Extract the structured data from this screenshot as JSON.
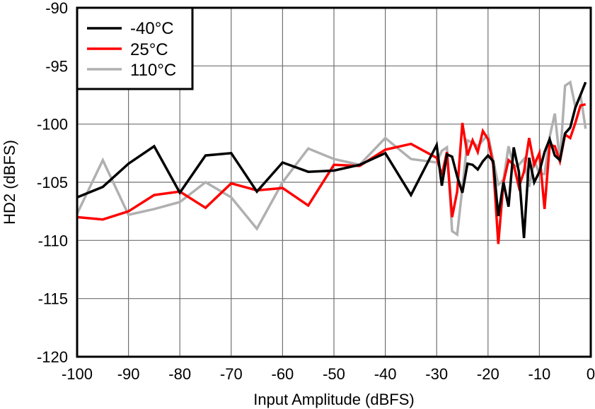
{
  "chart_data": {
    "type": "line",
    "title": "",
    "xlabel": "Input Amplitude (dBFS)",
    "ylabel": "HD2 (dBFS)",
    "xlim": [
      -100,
      0
    ],
    "ylim": [
      -120,
      -90
    ],
    "xticks": [
      "-100",
      "-90",
      "-80",
      "-70",
      "-60",
      "-50",
      "-40",
      "-30",
      "-20",
      "-10",
      "0"
    ],
    "yticks": [
      "-90",
      "-95",
      "-100",
      "-105",
      "-110",
      "-115",
      "-120"
    ],
    "grid": true,
    "legend_position": "top-left",
    "series": [
      {
        "name": "-40°C",
        "color": "#000000",
        "x": [
          -100,
          -95,
          -90,
          -85,
          -80,
          -75,
          -70,
          -65,
          -60,
          -55,
          -50,
          -45,
          -40,
          -35,
          -30,
          -29,
          -28,
          -27,
          -26,
          -25,
          -24,
          -23,
          -22,
          -21,
          -20,
          -19,
          -18,
          -17,
          -16,
          -15,
          -14,
          -13,
          -12,
          -11,
          -10,
          -9,
          -8,
          -7,
          -6,
          -5,
          -4,
          -3,
          -2,
          -1
        ],
        "y": [
          -106.3,
          -105.4,
          -103.4,
          -101.9,
          -105.9,
          -102.7,
          -102.5,
          -105.8,
          -103.3,
          -104.1,
          -104.0,
          -103.5,
          -102.5,
          -106.1,
          -101.8,
          -105.3,
          -102.6,
          -102.8,
          -104.5,
          -105.9,
          -103.4,
          -103.5,
          -103.9,
          -103.2,
          -102.7,
          -103.2,
          -107.9,
          -105.0,
          -107.1,
          -102.0,
          -104.1,
          -109.8,
          -102.9,
          -105.0,
          -104.1,
          -102.4,
          -101.3,
          -102.7,
          -103.1,
          -100.8,
          -100.3,
          -98.6,
          -97.5,
          -96.4
        ]
      },
      {
        "name": "25°C",
        "color": "#ff0000",
        "x": [
          -100,
          -95,
          -90,
          -85,
          -80,
          -75,
          -70,
          -65,
          -60,
          -55,
          -50,
          -45,
          -40,
          -35,
          -30,
          -29,
          -28,
          -27,
          -26,
          -25,
          -24,
          -23,
          -22,
          -21,
          -20,
          -19,
          -18,
          -17,
          -16,
          -15,
          -14,
          -13,
          -12,
          -11,
          -10,
          -9,
          -8,
          -7,
          -6,
          -5,
          -4,
          -3,
          -2,
          -1
        ],
        "y": [
          -108.0,
          -108.2,
          -107.5,
          -106.1,
          -105.8,
          -107.2,
          -105.1,
          -105.7,
          -105.5,
          -107.0,
          -103.5,
          -103.6,
          -102.2,
          -101.7,
          -102.9,
          -104.4,
          -102.4,
          -108.0,
          -105.8,
          -99.9,
          -102.7,
          -101.4,
          -102.4,
          -100.6,
          -101.3,
          -103.5,
          -110.3,
          -105.0,
          -103.1,
          -103.5,
          -105.4,
          -104.1,
          -101.2,
          -103.5,
          -102.5,
          -107.3,
          -101.8,
          -101.9,
          -103.2,
          -100.9,
          -101.2,
          -99.9,
          -98.4,
          -98.3
        ]
      },
      {
        "name": "110°C",
        "color": "#b0b0b0",
        "x": [
          -100,
          -95,
          -90,
          -85,
          -80,
          -75,
          -70,
          -65,
          -60,
          -55,
          -50,
          -45,
          -40,
          -35,
          -30,
          -29,
          -28,
          -27,
          -26,
          -25,
          -24,
          -23,
          -22,
          -21,
          -20,
          -19,
          -18,
          -17,
          -16,
          -15,
          -14,
          -13,
          -12,
          -11,
          -10,
          -9,
          -8,
          -7,
          -6,
          -5,
          -4,
          -3,
          -2,
          -1
        ],
        "y": [
          -107.7,
          -103.1,
          -107.8,
          -107.3,
          -106.7,
          -105.0,
          -106.3,
          -109.0,
          -105.0,
          -102.1,
          -103.0,
          -103.5,
          -101.2,
          -103.0,
          -103.3,
          -102.3,
          -102.0,
          -109.2,
          -109.5,
          -105.5,
          -101.4,
          -101.6,
          -101.9,
          -101.4,
          -100.9,
          -103.1,
          -105.2,
          -104.8,
          -101.9,
          -103.7,
          -103.5,
          -103.0,
          -105.4,
          -103.1,
          -104.3,
          -104.3,
          -101.1,
          -99.1,
          -103.2,
          -96.7,
          -96.4,
          -98.5,
          -97.5,
          -100.4
        ]
      }
    ]
  }
}
